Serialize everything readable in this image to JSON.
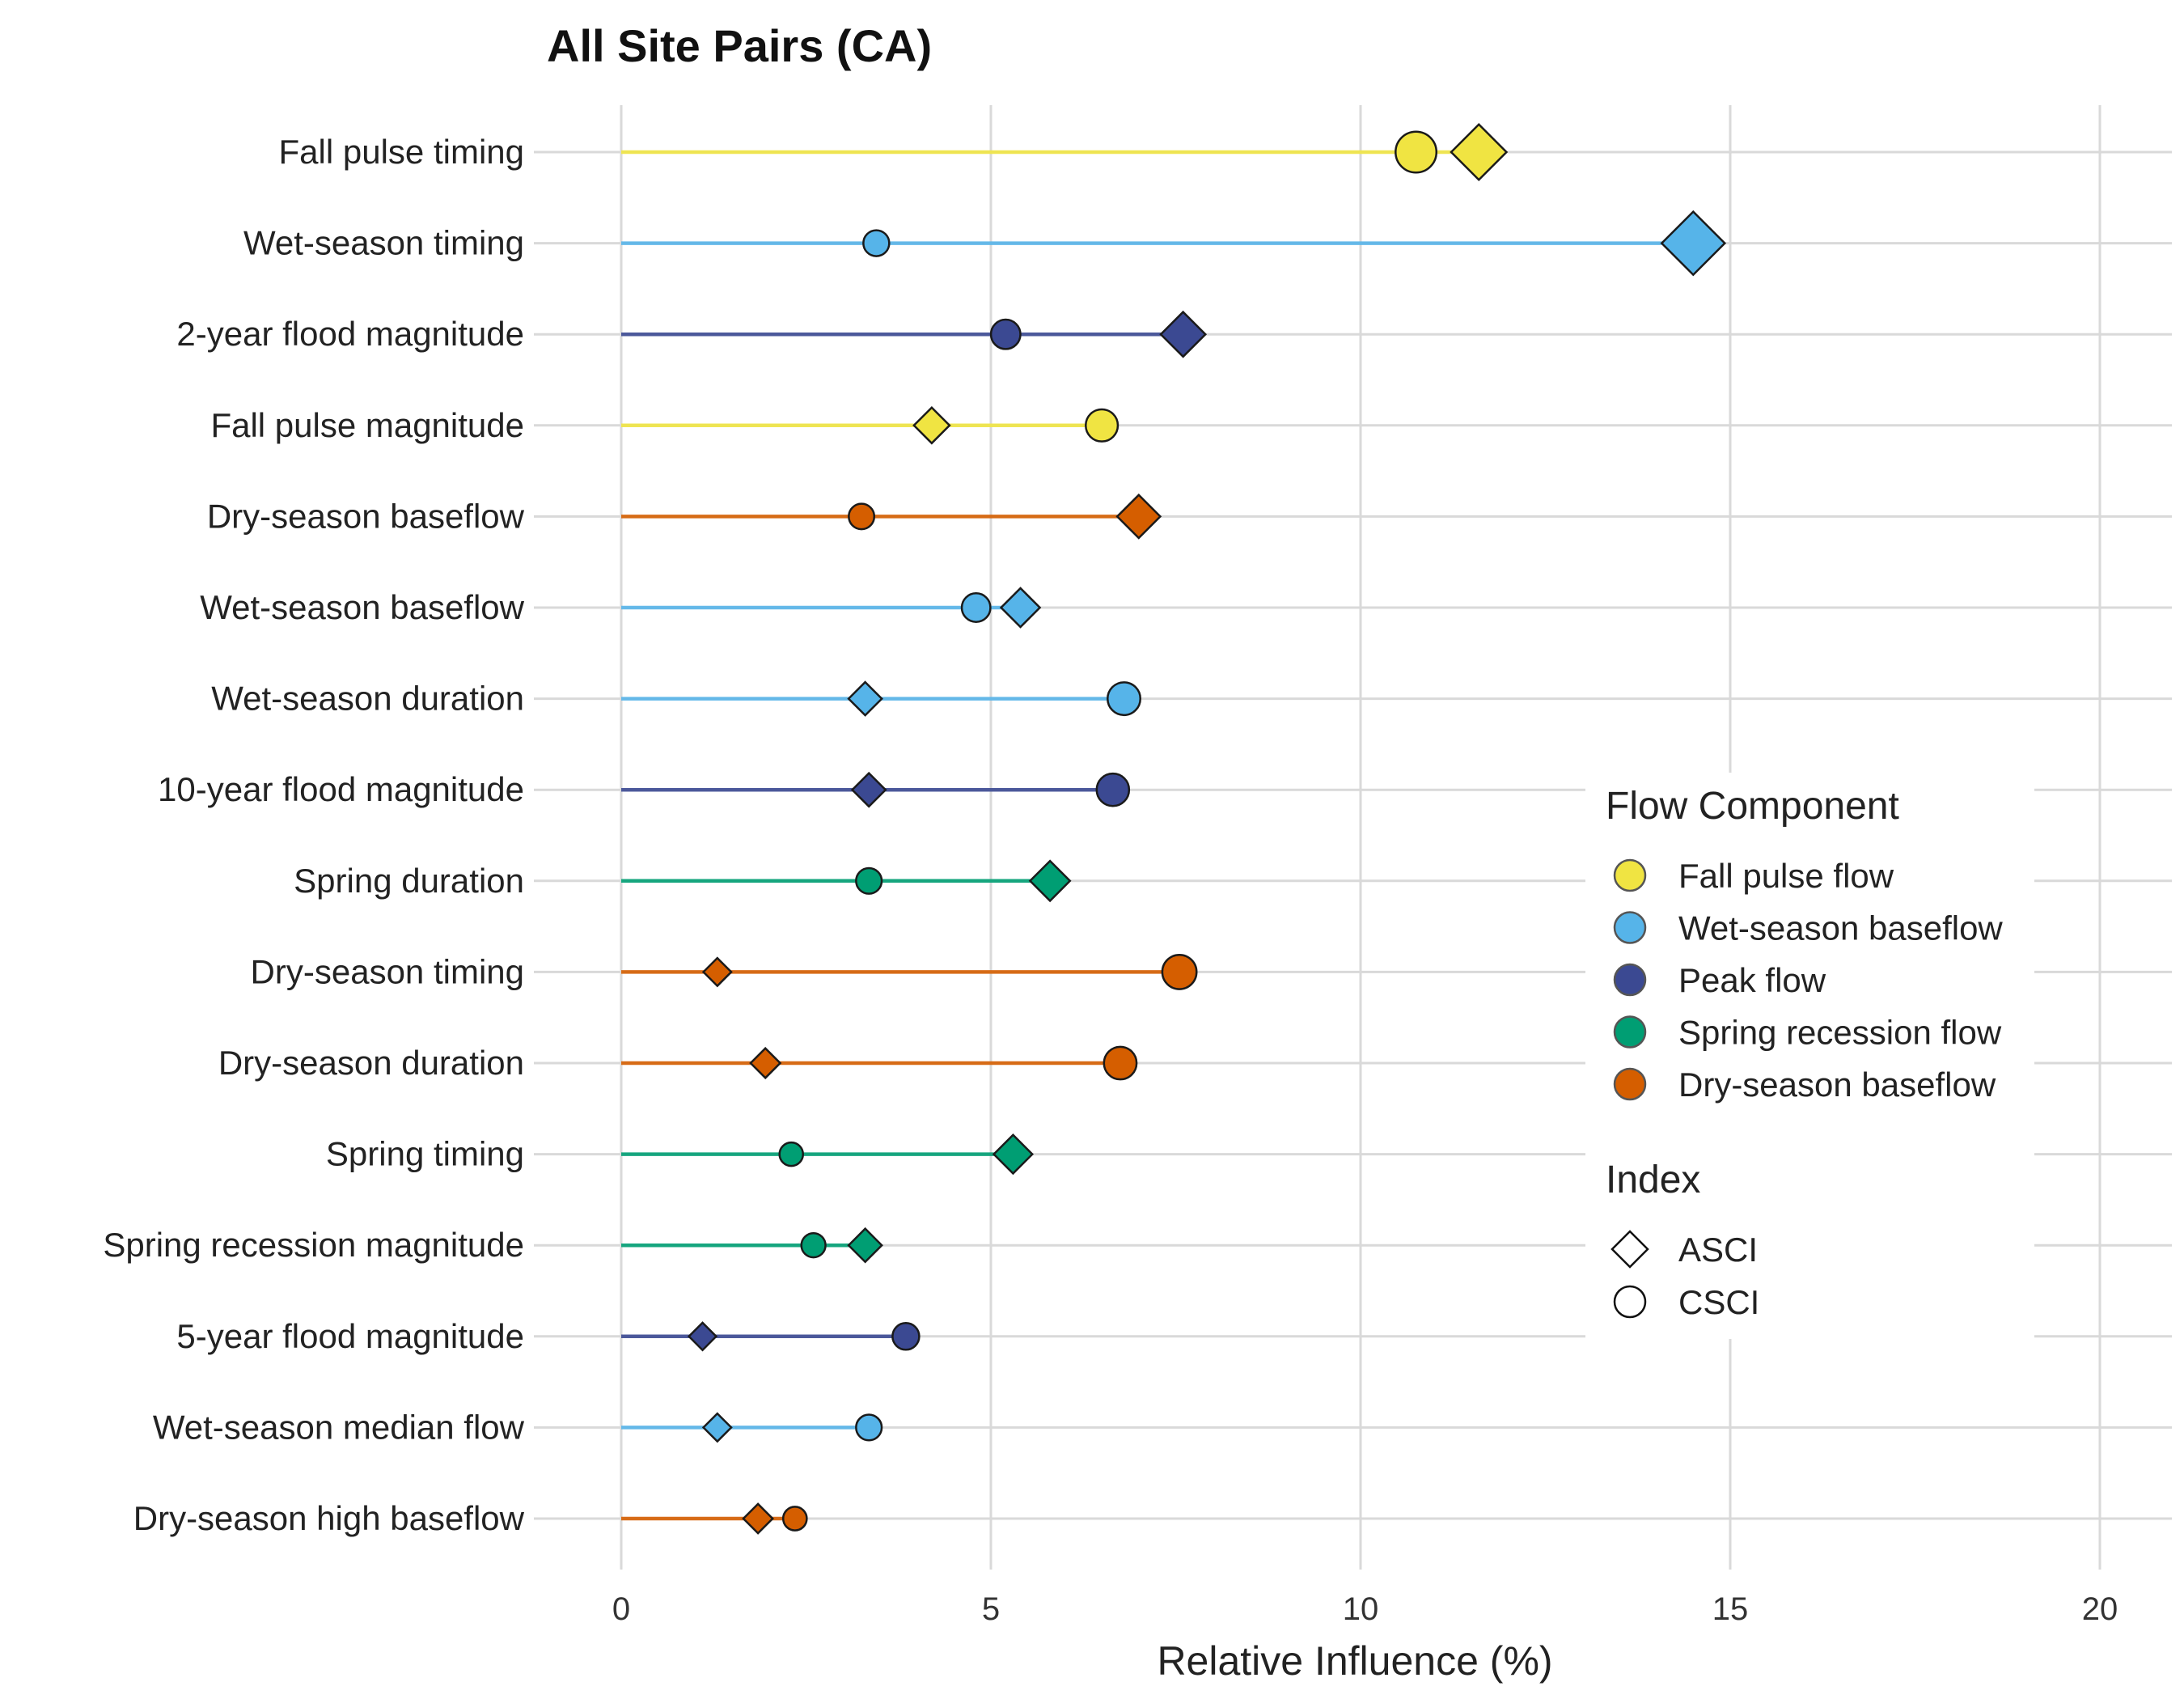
{
  "chart_data": {
    "type": "scatter",
    "title": "All Site Pairs (CA)",
    "xlabel": "Relative Influence (%)",
    "ylabel": "",
    "xlim": [
      -2.2,
      20.8
    ],
    "xticks": [
      0,
      5,
      10,
      15,
      20
    ],
    "grid": true,
    "legend_position": "right",
    "components": [
      {
        "name": "Fall pulse flow",
        "color": "#F0E442"
      },
      {
        "name": "Wet-season baseflow",
        "color": "#56B4E9"
      },
      {
        "name": "Peak flow",
        "color": "#3B4992"
      },
      {
        "name": "Spring recession flow",
        "color": "#009E73"
      },
      {
        "name": "Dry-season baseflow",
        "color": "#D55E00"
      }
    ],
    "index_legend_title": "Index",
    "indices": [
      {
        "name": "ASCI",
        "shape": "diamond"
      },
      {
        "name": "CSCI",
        "shape": "circle"
      }
    ],
    "component_legend_title": "Flow Component",
    "metrics": [
      {
        "label": "Fall pulse timing",
        "component": 0,
        "ASCI": 11.6,
        "CSCI": 10.75
      },
      {
        "label": "Wet-season timing",
        "component": 1,
        "ASCI": 14.5,
        "CSCI": 3.45
      },
      {
        "label": "2-year flood magnitude",
        "component": 2,
        "ASCI": 7.6,
        "CSCI": 5.2
      },
      {
        "label": "Fall pulse magnitude",
        "component": 0,
        "ASCI": 4.2,
        "CSCI": 6.5
      },
      {
        "label": "Dry-season baseflow",
        "component": 4,
        "ASCI": 7.0,
        "CSCI": 3.25
      },
      {
        "label": "Wet-season baseflow",
        "component": 1,
        "ASCI": 5.4,
        "CSCI": 4.8
      },
      {
        "label": "Wet-season duration",
        "component": 1,
        "ASCI": 3.3,
        "CSCI": 6.8
      },
      {
        "label": "10-year flood magnitude",
        "component": 2,
        "ASCI": 3.35,
        "CSCI": 6.65
      },
      {
        "label": "Spring duration",
        "component": 3,
        "ASCI": 5.8,
        "CSCI": 3.35
      },
      {
        "label": "Dry-season timing",
        "component": 4,
        "ASCI": 1.3,
        "CSCI": 7.55
      },
      {
        "label": "Dry-season duration",
        "component": 4,
        "ASCI": 1.95,
        "CSCI": 6.75
      },
      {
        "label": "Spring timing",
        "component": 3,
        "ASCI": 5.3,
        "CSCI": 2.3
      },
      {
        "label": "Spring recession magnitude",
        "component": 3,
        "ASCI": 3.3,
        "CSCI": 2.6
      },
      {
        "label": "5-year flood magnitude",
        "component": 2,
        "ASCI": 1.1,
        "CSCI": 3.85
      },
      {
        "label": "Wet-season median flow",
        "component": 1,
        "ASCI": 1.3,
        "CSCI": 3.35
      },
      {
        "label": "Dry-season high baseflow",
        "component": 4,
        "ASCI": 1.85,
        "CSCI": 2.35
      }
    ]
  }
}
